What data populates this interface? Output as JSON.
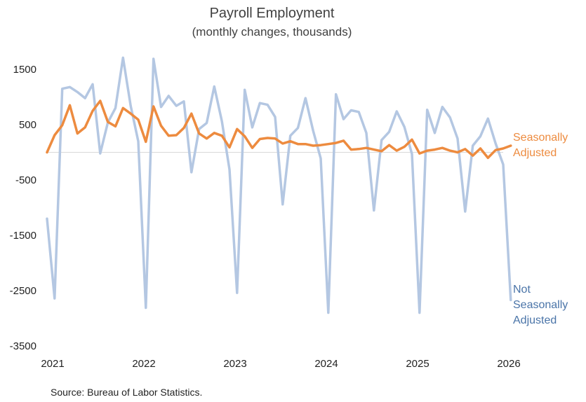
{
  "chart_data": {
    "type": "line",
    "title": "Payroll Employment",
    "subtitle": "(monthly changes, thousands)",
    "source": "Source: Bureau of Labor Statistics.",
    "y_ticks": [
      "1500",
      "500",
      "-500",
      "-1500",
      "-2500",
      "-3500"
    ],
    "y_tick_values": [
      1500,
      500,
      -500,
      -1500,
      -2500,
      -3500
    ],
    "x_ticks": [
      "2021",
      "2022",
      "2023",
      "2024",
      "2025",
      "2026"
    ],
    "x_tick_values": [
      2021,
      2022,
      2023,
      2024,
      2025,
      2026
    ],
    "ylim": [
      -3500,
      1750
    ],
    "xlim": [
      2021,
      2026
    ],
    "grid": false,
    "zero_line": true,
    "series": [
      {
        "key": "nsa",
        "label_lines": [
          "Not",
          "Seasonally",
          "Adjusted"
        ],
        "color": "#B4C7E2",
        "values": [
          -1200,
          -2640,
          1150,
          1180,
          1090,
          980,
          1230,
          -20,
          540,
          800,
          1710,
          840,
          200,
          -2810,
          1690,
          820,
          1020,
          840,
          920,
          -360,
          420,
          530,
          1190,
          560,
          -310,
          -2540,
          1130,
          450,
          890,
          860,
          640,
          -940,
          300,
          440,
          980,
          390,
          -110,
          -2900,
          1050,
          600,
          760,
          730,
          350,
          -1050,
          220,
          370,
          740,
          460,
          -30,
          -2900,
          770,
          350,
          820,
          630,
          250,
          -1070,
          120,
          290,
          610,
          160,
          -220,
          -2670
        ]
      },
      {
        "key": "sa",
        "label_lines": [
          "Seasonally",
          "Adjusted"
        ],
        "color": "#ED8B3F",
        "values": [
          0,
          310,
          490,
          850,
          340,
          450,
          750,
          930,
          550,
          470,
          800,
          700,
          590,
          190,
          830,
          480,
          300,
          310,
          440,
          700,
          340,
          250,
          350,
          300,
          90,
          420,
          290,
          80,
          240,
          260,
          250,
          160,
          200,
          150,
          150,
          120,
          130,
          150,
          170,
          210,
          50,
          60,
          80,
          50,
          20,
          130,
          30,
          100,
          230,
          -20,
          30,
          50,
          80,
          30,
          0,
          60,
          -60,
          70,
          -100,
          40,
          70,
          120
        ]
      }
    ]
  }
}
